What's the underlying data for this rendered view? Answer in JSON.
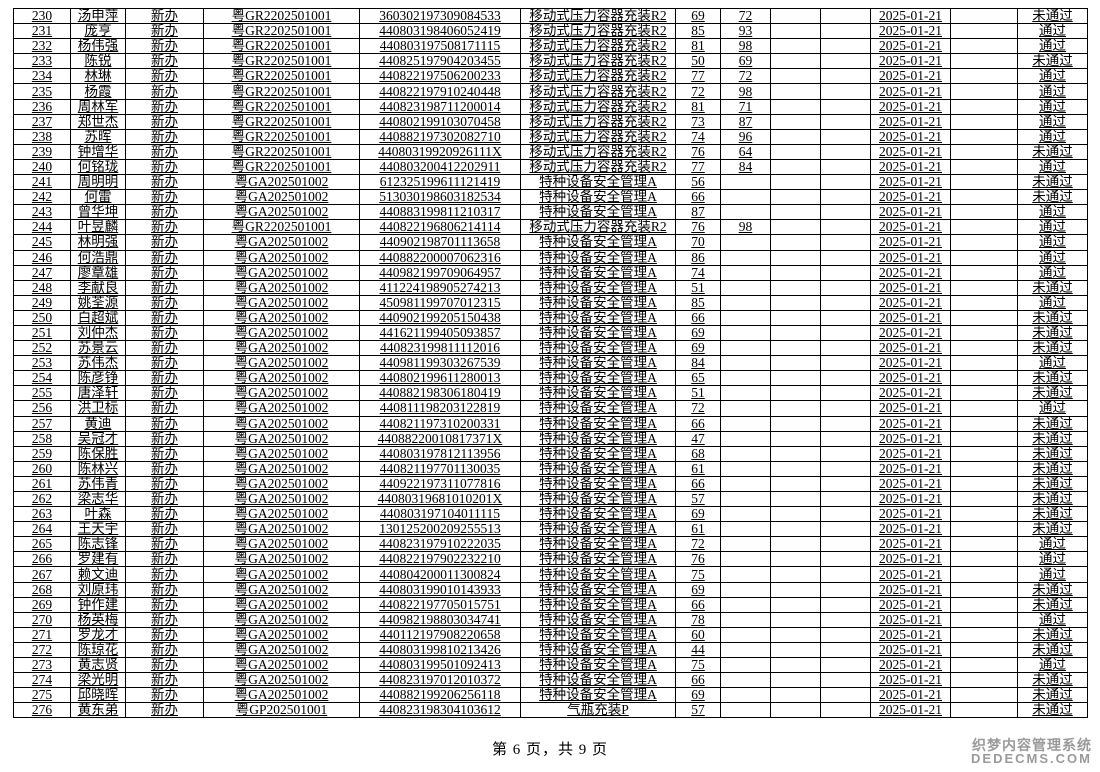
{
  "document": {
    "page_footer": "第 6 页，共 9 页",
    "page_current": "6",
    "page_total": "9"
  },
  "watermark": {
    "line1": "织梦内容管理系统",
    "line2": "DEDECMS.COM",
    "color": "#9a9a9a"
  },
  "table": {
    "pass_label": "通过",
    "fail_label": "未通过",
    "rows": [
      [
        "230",
        "汤申萍",
        "新办",
        "粤GR2202501001",
        "360302197309084533",
        "移动式压力容器充装R2",
        "69",
        "72",
        "",
        "",
        "2025-01-21",
        "",
        "未通过"
      ],
      [
        "231",
        "庞亨",
        "新办",
        "粤GR2202501001",
        "440803198406052419",
        "移动式压力容器充装R2",
        "85",
        "93",
        "",
        "",
        "2025-01-21",
        "",
        "通过"
      ],
      [
        "232",
        "杨伟强",
        "新办",
        "粤GR2202501001",
        "440803197508171115",
        "移动式压力容器充装R2",
        "81",
        "98",
        "",
        "",
        "2025-01-21",
        "",
        "通过"
      ],
      [
        "233",
        "陈锐",
        "新办",
        "粤GR2202501001",
        "440825197904203455",
        "移动式压力容器充装R2",
        "50",
        "69",
        "",
        "",
        "2025-01-21",
        "",
        "未通过"
      ],
      [
        "234",
        "林琳",
        "新办",
        "粤GR2202501001",
        "440822197506200233",
        "移动式压力容器充装R2",
        "77",
        "72",
        "",
        "",
        "2025-01-21",
        "",
        "通过"
      ],
      [
        "235",
        "杨霞",
        "新办",
        "粤GR2202501001",
        "440822197910240448",
        "移动式压力容器充装R2",
        "72",
        "98",
        "",
        "",
        "2025-01-21",
        "",
        "通过"
      ],
      [
        "236",
        "周林军",
        "新办",
        "粤GR2202501001",
        "440823198711200014",
        "移动式压力容器充装R2",
        "81",
        "71",
        "",
        "",
        "2025-01-21",
        "",
        "通过"
      ],
      [
        "237",
        "郑世杰",
        "新办",
        "粤GR2202501001",
        "440802199103070458",
        "移动式压力容器充装R2",
        "73",
        "87",
        "",
        "",
        "2025-01-21",
        "",
        "通过"
      ],
      [
        "238",
        "苏晖",
        "新办",
        "粤GR2202501001",
        "440882197302082710",
        "移动式压力容器充装R2",
        "74",
        "96",
        "",
        "",
        "2025-01-21",
        "",
        "通过"
      ],
      [
        "239",
        "钟增华",
        "新办",
        "粤GR2202501001",
        "44080319920926111X",
        "移动式压力容器充装R2",
        "76",
        "64",
        "",
        "",
        "2025-01-21",
        "",
        "未通过"
      ],
      [
        "240",
        "何铭珑",
        "新办",
        "粤GR2202501001",
        "440803200412202911",
        "移动式压力容器充装R2",
        "77",
        "84",
        "",
        "",
        "2025-01-21",
        "",
        "通过"
      ],
      [
        "241",
        "周明明",
        "新办",
        "粤GA202501002",
        "612325199611121419",
        "特种设备安全管理A",
        "56",
        "",
        "",
        "",
        "2025-01-21",
        "",
        "未通过"
      ],
      [
        "242",
        "何雷",
        "新办",
        "粤GA202501002",
        "513030198603182534",
        "特种设备安全管理A",
        "66",
        "",
        "",
        "",
        "2025-01-21",
        "",
        "未通过"
      ],
      [
        "243",
        "曾华坤",
        "新办",
        "粤GA202501002",
        "440883199811210317",
        "特种设备安全管理A",
        "87",
        "",
        "",
        "",
        "2025-01-21",
        "",
        "通过"
      ],
      [
        "244",
        "叶昱麟",
        "新办",
        "粤GR2202501001",
        "440822196806214114",
        "移动式压力容器充装R2",
        "76",
        "98",
        "",
        "",
        "2025-01-21",
        "",
        "通过"
      ],
      [
        "245",
        "林明强",
        "新办",
        "粤GA202501002",
        "440902198701113658",
        "特种设备安全管理A",
        "70",
        "",
        "",
        "",
        "2025-01-21",
        "",
        "通过"
      ],
      [
        "246",
        "何浩鼎",
        "新办",
        "粤GA202501002",
        "440882200007062316",
        "特种设备安全管理A",
        "86",
        "",
        "",
        "",
        "2025-01-21",
        "",
        "通过"
      ],
      [
        "247",
        "廖章雄",
        "新办",
        "粤GA202501002",
        "440982199709064957",
        "特种设备安全管理A",
        "74",
        "",
        "",
        "",
        "2025-01-21",
        "",
        "通过"
      ],
      [
        "248",
        "李献良",
        "新办",
        "粤GA202501002",
        "411224198905274213",
        "特种设备安全管理A",
        "51",
        "",
        "",
        "",
        "2025-01-21",
        "",
        "未通过"
      ],
      [
        "249",
        "姚荃源",
        "新办",
        "粤GA202501002",
        "450981199707012315",
        "特种设备安全管理A",
        "85",
        "",
        "",
        "",
        "2025-01-21",
        "",
        "通过"
      ],
      [
        "250",
        "白超斌",
        "新办",
        "粤GA202501002",
        "440902199205150438",
        "特种设备安全管理A",
        "66",
        "",
        "",
        "",
        "2025-01-21",
        "",
        "未通过"
      ],
      [
        "251",
        "刘仲杰",
        "新办",
        "粤GA202501002",
        "441621199405093857",
        "特种设备安全管理A",
        "69",
        "",
        "",
        "",
        "2025-01-21",
        "",
        "未通过"
      ],
      [
        "252",
        "苏景云",
        "新办",
        "粤GA202501002",
        "440823199811112016",
        "特种设备安全管理A",
        "69",
        "",
        "",
        "",
        "2025-01-21",
        "",
        "未通过"
      ],
      [
        "253",
        "苏伟杰",
        "新办",
        "粤GA202501002",
        "440981199303267539",
        "特种设备安全管理A",
        "84",
        "",
        "",
        "",
        "2025-01-21",
        "",
        "通过"
      ],
      [
        "254",
        "陈彦铮",
        "新办",
        "粤GA202501002",
        "440802199611280013",
        "特种设备安全管理A",
        "65",
        "",
        "",
        "",
        "2025-01-21",
        "",
        "未通过"
      ],
      [
        "255",
        "唐泽轩",
        "新办",
        "粤GA202501002",
        "440882198306180419",
        "特种设备安全管理A",
        "51",
        "",
        "",
        "",
        "2025-01-21",
        "",
        "未通过"
      ],
      [
        "256",
        "洪卫标",
        "新办",
        "粤GA202501002",
        "440811198203122819",
        "特种设备安全管理A",
        "72",
        "",
        "",
        "",
        "2025-01-21",
        "",
        "通过"
      ],
      [
        "257",
        "黄迪",
        "新办",
        "粤GA202501002",
        "440821197310200331",
        "特种设备安全管理A",
        "66",
        "",
        "",
        "",
        "2025-01-21",
        "",
        "未通过"
      ],
      [
        "258",
        "吴冠才",
        "新办",
        "粤GA202501002",
        "44088220010817371X",
        "特种设备安全管理A",
        "47",
        "",
        "",
        "",
        "2025-01-21",
        "",
        "未通过"
      ],
      [
        "259",
        "陈保胜",
        "新办",
        "粤GA202501002",
        "440803197812113956",
        "特种设备安全管理A",
        "68",
        "",
        "",
        "",
        "2025-01-21",
        "",
        "未通过"
      ],
      [
        "260",
        "陈林兴",
        "新办",
        "粤GA202501002",
        "440821197701130035",
        "特种设备安全管理A",
        "61",
        "",
        "",
        "",
        "2025-01-21",
        "",
        "未通过"
      ],
      [
        "261",
        "苏伟青",
        "新办",
        "粤GA202501002",
        "440922197311077816",
        "特种设备安全管理A",
        "66",
        "",
        "",
        "",
        "2025-01-21",
        "",
        "未通过"
      ],
      [
        "262",
        "梁志华",
        "新办",
        "粤GA202501002",
        "44080319681010201X",
        "特种设备安全管理A",
        "57",
        "",
        "",
        "",
        "2025-01-21",
        "",
        "未通过"
      ],
      [
        "263",
        "叶森",
        "新办",
        "粤GA202501002",
        "440803197104011115",
        "特种设备安全管理A",
        "69",
        "",
        "",
        "",
        "2025-01-21",
        "",
        "未通过"
      ],
      [
        "264",
        "王天宇",
        "新办",
        "粤GA202501002",
        "130125200209255513",
        "特种设备安全管理A",
        "61",
        "",
        "",
        "",
        "2025-01-21",
        "",
        "未通过"
      ],
      [
        "265",
        "陈志锋",
        "新办",
        "粤GA202501002",
        "440823197910222035",
        "特种设备安全管理A",
        "72",
        "",
        "",
        "",
        "2025-01-21",
        "",
        "通过"
      ],
      [
        "266",
        "罗建有",
        "新办",
        "粤GA202501002",
        "440822197902232210",
        "特种设备安全管理A",
        "76",
        "",
        "",
        "",
        "2025-01-21",
        "",
        "通过"
      ],
      [
        "267",
        "赖文迪",
        "新办",
        "粤GA202501002",
        "440804200011300824",
        "特种设备安全管理A",
        "75",
        "",
        "",
        "",
        "2025-01-21",
        "",
        "通过"
      ],
      [
        "268",
        "刘原玮",
        "新办",
        "粤GA202501002",
        "440803199010143933",
        "特种设备安全管理A",
        "69",
        "",
        "",
        "",
        "2025-01-21",
        "",
        "未通过"
      ],
      [
        "269",
        "钟作建",
        "新办",
        "粤GA202501002",
        "440822197705015751",
        "特种设备安全管理A",
        "66",
        "",
        "",
        "",
        "2025-01-21",
        "",
        "未通过"
      ],
      [
        "270",
        "杨英梅",
        "新办",
        "粤GA202501002",
        "440982198803034741",
        "特种设备安全管理A",
        "78",
        "",
        "",
        "",
        "2025-01-21",
        "",
        "通过"
      ],
      [
        "271",
        "罗龙才",
        "新办",
        "粤GA202501002",
        "440112197908220658",
        "特种设备安全管理A",
        "60",
        "",
        "",
        "",
        "2025-01-21",
        "",
        "未通过"
      ],
      [
        "272",
        "陈琼花",
        "新办",
        "粤GA202501002",
        "440803199810213426",
        "特种设备安全管理A",
        "44",
        "",
        "",
        "",
        "2025-01-21",
        "",
        "未通过"
      ],
      [
        "273",
        "黄志贤",
        "新办",
        "粤GA202501002",
        "440803199501092413",
        "特种设备安全管理A",
        "75",
        "",
        "",
        "",
        "2025-01-21",
        "",
        "通过"
      ],
      [
        "274",
        "梁光明",
        "新办",
        "粤GA202501002",
        "440823197012010372",
        "特种设备安全管理A",
        "66",
        "",
        "",
        "",
        "2025-01-21",
        "",
        "未通过"
      ],
      [
        "275",
        "邱晓晖",
        "新办",
        "粤GA202501002",
        "440882199206256118",
        "特种设备安全管理A",
        "69",
        "",
        "",
        "",
        "2025-01-21",
        "",
        "未通过"
      ],
      [
        "276",
        "黄东弟",
        "新办",
        "粤GP202501001",
        "440823198304103612",
        "气瓶充装P",
        "57",
        "",
        "",
        "",
        "2025-01-21",
        "",
        "未通过"
      ]
    ]
  }
}
